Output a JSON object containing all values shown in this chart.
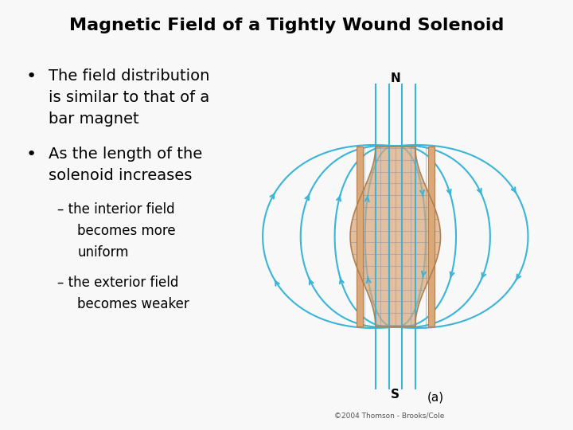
{
  "title": "Magnetic Field of a Tightly Wound Solenoid",
  "title_bg": "#aed4d9",
  "bg_color": "#f8f8f8",
  "bullet1_line1": "The field distribution",
  "bullet1_line2": "is similar to that of a",
  "bullet1_line3": "bar magnet",
  "bullet2_line1": "As the length of the",
  "bullet2_line2": "solenoid increases",
  "sub1_line1": "the interior field",
  "sub1_line2": "becomes more",
  "sub1_line3": "uniform",
  "sub2_line1": "the exterior field",
  "sub2_line2": "becomes weaker",
  "field_color": "#3ab5d8",
  "solenoid_fill": "#dba87a",
  "solenoid_edge": "#b08050",
  "grid_color": "#8899aa",
  "caption": "(a)",
  "copyright": "©2004 Thomson - Brooks/Cole",
  "label_N": "N",
  "label_S": "S"
}
